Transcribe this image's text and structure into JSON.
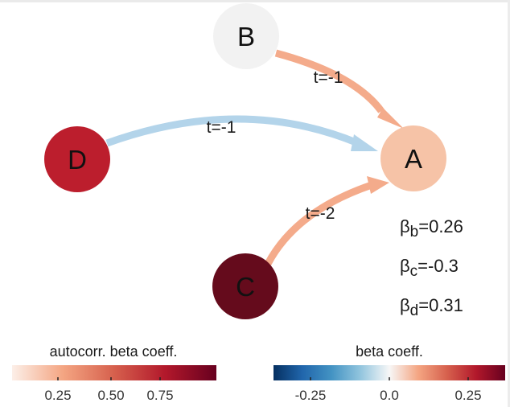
{
  "nodes": [
    {
      "id": "B",
      "label": "B",
      "color": "#f2f2f2"
    },
    {
      "id": "A",
      "label": "A",
      "color": "#f6c3a7"
    },
    {
      "id": "D",
      "label": "D",
      "color": "#bc1e2d"
    },
    {
      "id": "C",
      "label": "C",
      "color": "#650b1c"
    }
  ],
  "edges": [
    {
      "from": "B",
      "to": "A",
      "label": "t=-1",
      "color": "#f4ab8b"
    },
    {
      "from": "D",
      "to": "A",
      "label": "t=-1",
      "color": "#b3d4ea"
    },
    {
      "from": "C",
      "to": "A",
      "label": "t=-2",
      "color": "#f4ab8b"
    }
  ],
  "coefficients": [
    {
      "symbol": "β",
      "subscript": "b",
      "value": "=0.26"
    },
    {
      "symbol": "β",
      "subscript": "c",
      "value": "=-0.3"
    },
    {
      "symbol": "β",
      "subscript": "d",
      "value": "=0.31"
    }
  ],
  "legends": {
    "autocorr": {
      "title": "autocorr. beta coeff.",
      "ticks": [
        "0.25",
        "0.50",
        "0.75"
      ],
      "color_stops": [
        "#fcefe8",
        "#f4a582",
        "#d6604d",
        "#b2182b",
        "#67001f"
      ]
    },
    "beta": {
      "title": "beta coeff.",
      "ticks": [
        "-0.25",
        "0.0",
        "0.25"
      ],
      "color_stops": [
        "#053061",
        "#2166ac",
        "#4393c3",
        "#92c5de",
        "#f7f7f7",
        "#f4a582",
        "#d6604d",
        "#b2182b",
        "#67001f"
      ]
    }
  }
}
